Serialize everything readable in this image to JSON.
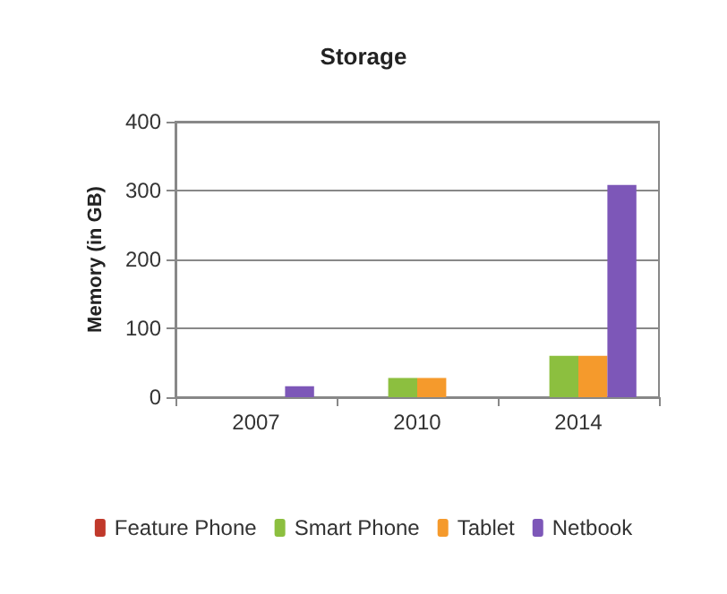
{
  "chart_data": {
    "type": "bar",
    "title": "Storage",
    "ylabel": "Memory (in GB)",
    "categories": [
      "2007",
      "2010",
      "2014"
    ],
    "series": [
      {
        "name": "Feature Phone",
        "color": "#c0392b",
        "values": [
          0,
          0,
          0
        ]
      },
      {
        "name": "Smart Phone",
        "color": "#8cbf3f",
        "values": [
          0,
          28,
          60
        ]
      },
      {
        "name": "Tablet",
        "color": "#f59a2c",
        "values": [
          0,
          28,
          60
        ]
      },
      {
        "name": "Netbook",
        "color": "#7d57b8",
        "values": [
          16,
          0,
          308
        ]
      }
    ],
    "ylim": [
      0,
      400
    ],
    "yticks": [
      0,
      100,
      200,
      300,
      400
    ],
    "grid": "y",
    "legend": "bottom"
  }
}
